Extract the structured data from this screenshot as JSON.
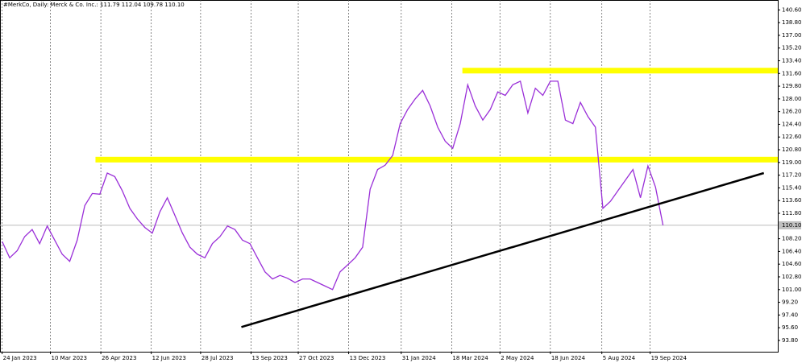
{
  "chart_data": {
    "type": "line",
    "title": "#MerkCo, Daily:  Merck & Co. Inc.:  111.79 112.04 109.78 110.10",
    "x": [
      "2023-01-24",
      "2023-01-31",
      "2023-02-07",
      "2023-02-14",
      "2023-02-21",
      "2023-02-28",
      "2023-03-07",
      "2023-03-14",
      "2023-03-21",
      "2023-03-28",
      "2023-04-04",
      "2023-04-11",
      "2023-04-18",
      "2023-04-25",
      "2023-05-02",
      "2023-05-09",
      "2023-05-16",
      "2023-05-23",
      "2023-05-30",
      "2023-06-06",
      "2023-06-13",
      "2023-06-20",
      "2023-06-27",
      "2023-07-04",
      "2023-07-11",
      "2023-07-18",
      "2023-07-25",
      "2023-08-01",
      "2023-08-08",
      "2023-08-15",
      "2023-08-22",
      "2023-08-29",
      "2023-09-05",
      "2023-09-12",
      "2023-09-19",
      "2023-09-26",
      "2023-10-03",
      "2023-10-10",
      "2023-10-17",
      "2023-10-24",
      "2023-10-31",
      "2023-11-07",
      "2023-11-14",
      "2023-11-21",
      "2023-11-28",
      "2023-12-05",
      "2023-12-12",
      "2023-12-19",
      "2023-12-26",
      "2024-01-02",
      "2024-01-09",
      "2024-01-16",
      "2024-01-23",
      "2024-01-30",
      "2024-02-06",
      "2024-02-13",
      "2024-02-20",
      "2024-02-27",
      "2024-03-05",
      "2024-03-12",
      "2024-03-19",
      "2024-03-26",
      "2024-04-02",
      "2024-04-09",
      "2024-04-16",
      "2024-04-23",
      "2024-04-30",
      "2024-05-07",
      "2024-05-14",
      "2024-05-21",
      "2024-05-28",
      "2024-06-04",
      "2024-06-11",
      "2024-06-18",
      "2024-06-25",
      "2024-07-02",
      "2024-07-09",
      "2024-07-16",
      "2024-07-23",
      "2024-07-30",
      "2024-08-06",
      "2024-08-13",
      "2024-08-20",
      "2024-08-27",
      "2024-09-03",
      "2024-09-10",
      "2024-09-17",
      "2024-09-24",
      "2024-10-01"
    ],
    "series": [
      {
        "color": "#9a2fd8",
        "values": [
          107.8,
          105.5,
          106.5,
          108.5,
          109.5,
          107.5,
          110.0,
          108.0,
          106.0,
          105.0,
          108.0,
          112.9,
          114.6,
          114.5,
          117.5,
          117.0,
          115.0,
          112.5,
          111.0,
          109.8,
          109.0,
          112.0,
          114.0,
          111.5,
          109.0,
          107.0,
          106.0,
          105.5,
          107.5,
          108.5,
          110.0,
          109.5,
          108.0,
          107.5,
          105.5,
          103.5,
          102.5,
          103.0,
          102.6,
          102.0,
          102.5,
          102.5,
          102.0,
          101.5,
          101.0,
          103.5,
          104.5,
          105.5,
          107.0,
          115.2,
          118.0,
          118.6,
          120.0,
          124.5,
          126.5,
          128.0,
          129.2,
          127.0,
          124.0,
          122.0,
          121.0,
          124.5,
          130.0,
          127.0,
          125.0,
          126.5,
          129.0,
          128.5,
          130.0,
          130.5,
          126.0,
          129.5,
          128.5,
          130.5,
          130.5,
          125.0,
          124.5,
          127.5,
          125.5,
          124.0,
          112.5,
          113.5,
          115.0,
          116.5,
          118.0,
          114.0,
          118.5,
          115.5,
          110.1
        ]
      }
    ],
    "xlim": [
      "2023-01-22",
      "2025-01-16"
    ],
    "xticks": [
      {
        "value": "2023-01-24",
        "label": "24 Jan 2023"
      },
      {
        "value": "2023-03-10",
        "label": "10 Mar 2023"
      },
      {
        "value": "2023-04-26",
        "label": "26 Apr 2023"
      },
      {
        "value": "2023-06-12",
        "label": "12 Jun 2023"
      },
      {
        "value": "2023-07-28",
        "label": "28 Jul 2023"
      },
      {
        "value": "2023-09-13",
        "label": "13 Sep 2023"
      },
      {
        "value": "2023-10-27",
        "label": "27 Oct 2023"
      },
      {
        "value": "2023-12-13",
        "label": "13 Dec 2023"
      },
      {
        "value": "2024-01-31",
        "label": "31 Jan 2024"
      },
      {
        "value": "2024-03-18",
        "label": "18 Mar 2024"
      },
      {
        "value": "2024-05-02",
        "label": "2 May 2024"
      },
      {
        "value": "2024-06-18",
        "label": "18 Jun 2024"
      },
      {
        "value": "2024-08-05",
        "label": "5 Aug 2024"
      },
      {
        "value": "2024-09-19",
        "label": "19 Sep 2024"
      }
    ],
    "ylim": [
      92.2,
      142.0
    ],
    "yticks": [
      {
        "value": 93.8,
        "label": "93.80"
      },
      {
        "value": 95.6,
        "label": "95.60"
      },
      {
        "value": 97.4,
        "label": "97.40"
      },
      {
        "value": 99.2,
        "label": "99.20"
      },
      {
        "value": 101.0,
        "label": "101.00"
      },
      {
        "value": 102.8,
        "label": "102.80"
      },
      {
        "value": 104.6,
        "label": "104.60"
      },
      {
        "value": 106.4,
        "label": "106.40"
      },
      {
        "value": 108.2,
        "label": "108.20"
      },
      {
        "value": 111.8,
        "label": "111.80"
      },
      {
        "value": 113.6,
        "label": "113.60"
      },
      {
        "value": 115.4,
        "label": "115.40"
      },
      {
        "value": 117.2,
        "label": "117.20"
      },
      {
        "value": 119.0,
        "label": "119.00"
      },
      {
        "value": 120.8,
        "label": "120.80"
      },
      {
        "value": 122.6,
        "label": "122.60"
      },
      {
        "value": 124.4,
        "label": "124.40"
      },
      {
        "value": 126.2,
        "label": "126.20"
      },
      {
        "value": 128.0,
        "label": "128.00"
      },
      {
        "value": 129.8,
        "label": "129.80"
      },
      {
        "value": 131.6,
        "label": "131.60"
      },
      {
        "value": 133.4,
        "label": "133.40"
      },
      {
        "value": 135.2,
        "label": "135.20"
      },
      {
        "value": 137.0,
        "label": "137.00"
      },
      {
        "value": 138.8,
        "label": "138.80"
      },
      {
        "value": 140.6,
        "label": "140.60"
      }
    ],
    "last_price": {
      "value": 110.1,
      "label": "110.10"
    },
    "zones": [
      {
        "value": 132.0,
        "start": "2024-03-28",
        "color": "#ffff00"
      },
      {
        "value": 119.4,
        "start": "2023-04-21",
        "color": "#ffff00"
      }
    ],
    "trendline": {
      "x": [
        "2023-09-04",
        "2025-01-03"
      ],
      "values": [
        95.7,
        117.5
      ],
      "color": "#000000"
    },
    "grid": true
  }
}
